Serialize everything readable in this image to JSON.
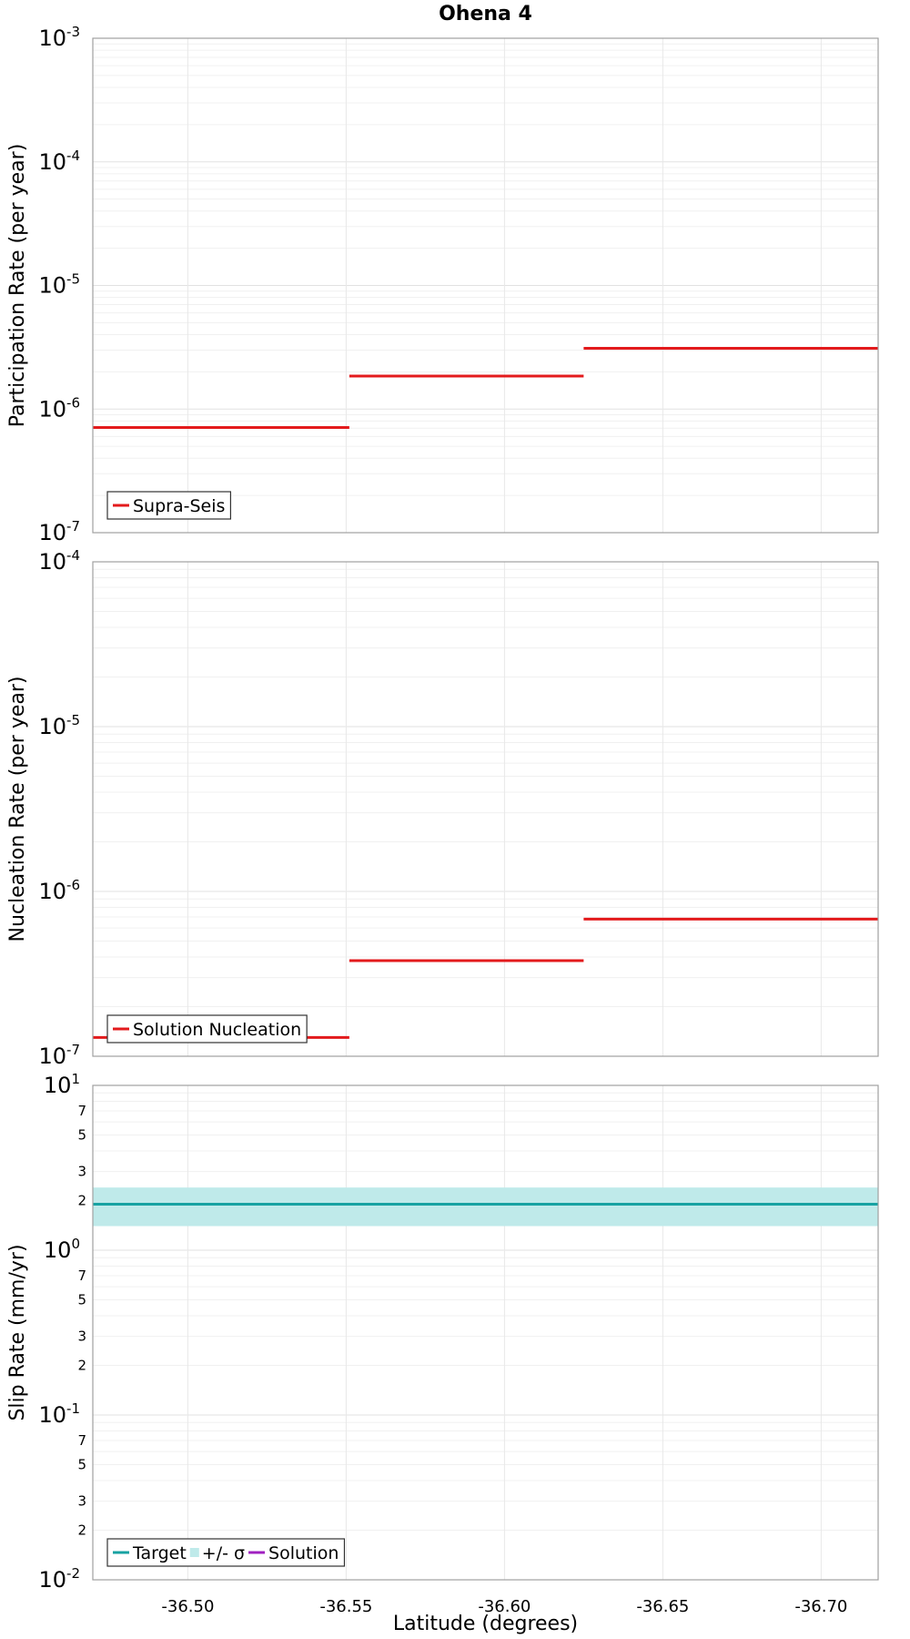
{
  "chart_data": [
    {
      "type": "line",
      "title": "Ohena 4",
      "ylabel": "Participation Rate (per year)",
      "yscale": "log",
      "ylim": [
        1e-07,
        0.001
      ],
      "y_major_ticks": [
        {
          "base": "10",
          "exp": "-3",
          "value": 0.001
        },
        {
          "base": "10",
          "exp": "-4",
          "value": 0.0001
        },
        {
          "base": "10",
          "exp": "-5",
          "value": 1e-05
        },
        {
          "base": "10",
          "exp": "-6",
          "value": 1e-06
        },
        {
          "base": "10",
          "exp": "-7",
          "value": 1e-07
        }
      ],
      "series": [
        {
          "name": "Supra-Seis",
          "color": "#e31a1c",
          "segments": [
            {
              "x0": -36.47,
              "x1": -36.551,
              "y": 7.1e-07
            },
            {
              "x0": -36.551,
              "x1": -36.625,
              "y": 1.85e-06
            },
            {
              "x0": -36.625,
              "x1": -36.718,
              "y": 3.1e-06
            }
          ]
        }
      ],
      "legend": [
        "Supra-Seis"
      ],
      "legend_position": "bottom-left"
    },
    {
      "type": "line",
      "ylabel": "Nucleation Rate (per year)",
      "yscale": "log",
      "ylim": [
        1e-07,
        0.0001
      ],
      "y_major_ticks": [
        {
          "base": "10",
          "exp": "-4",
          "value": 0.0001
        },
        {
          "base": "10",
          "exp": "-5",
          "value": 1e-05
        },
        {
          "base": "10",
          "exp": "-6",
          "value": 1e-06
        },
        {
          "base": "10",
          "exp": "-7",
          "value": 1e-07
        }
      ],
      "series": [
        {
          "name": "Solution Nucleation",
          "color": "#e31a1c",
          "segments": [
            {
              "x0": -36.47,
              "x1": -36.551,
              "y": 1.3e-07
            },
            {
              "x0": -36.551,
              "x1": -36.625,
              "y": 3.8e-07
            },
            {
              "x0": -36.625,
              "x1": -36.718,
              "y": 6.8e-07
            }
          ]
        }
      ],
      "legend": [
        "Solution Nucleation"
      ],
      "legend_position": "bottom-left"
    },
    {
      "type": "line",
      "ylabel": "Slip Rate (mm/yr)",
      "xlabel": "Latitude (degrees)",
      "yscale": "log",
      "ylim": [
        0.01,
        10
      ],
      "y_major_ticks": [
        {
          "base": "10",
          "exp": "1",
          "value": 10
        },
        {
          "base": "10",
          "exp": "0",
          "value": 1
        },
        {
          "base": "10",
          "exp": "-1",
          "value": 0.1
        },
        {
          "base": "10",
          "exp": "-2",
          "value": 0.01
        }
      ],
      "y_minor_labels": [
        {
          "label": "7",
          "value": 7
        },
        {
          "label": "5",
          "value": 5
        },
        {
          "label": "3",
          "value": 3
        },
        {
          "label": "2",
          "value": 2
        },
        {
          "label": "7",
          "value": 0.7
        },
        {
          "label": "5",
          "value": 0.5
        },
        {
          "label": "3",
          "value": 0.3
        },
        {
          "label": "2",
          "value": 0.2
        },
        {
          "label": "7",
          "value": 0.07
        },
        {
          "label": "5",
          "value": 0.05
        },
        {
          "label": "3",
          "value": 0.03
        },
        {
          "label": "2",
          "value": 0.02
        }
      ],
      "series": [
        {
          "name": "Target",
          "color": "#17a2a2",
          "y": 1.9
        },
        {
          "name": "+/- σ",
          "color": "#bfeaea",
          "y_low": 1.4,
          "y_high": 2.4
        },
        {
          "name": "Solution",
          "color": "#a020c0"
        }
      ],
      "legend": [
        "Target",
        "+/- σ",
        "Solution"
      ],
      "legend_position": "bottom-left"
    }
  ],
  "x_axis": {
    "xlim": [
      -36.47,
      -36.718
    ],
    "ticks": [
      {
        "label": "-36.50",
        "value": -36.5
      },
      {
        "label": "-36.55",
        "value": -36.55
      },
      {
        "label": "-36.60",
        "value": -36.6
      },
      {
        "label": "-36.65",
        "value": -36.65
      },
      {
        "label": "-36.70",
        "value": -36.7
      }
    ]
  }
}
